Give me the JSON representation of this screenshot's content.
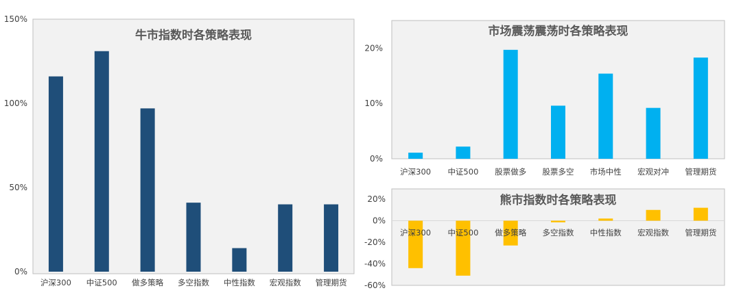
{
  "chart_data": [
    {
      "type": "bar",
      "title": "牛市指数时各策略表现",
      "categories": [
        "沪深300",
        "中证500",
        "做多策略",
        "多空指数",
        "中性指数",
        "宏观指数",
        "管理期货"
      ],
      "values": [
        116,
        131,
        97,
        41,
        14,
        40,
        40
      ],
      "ylim": [
        0,
        150
      ],
      "yticks": [
        "0%",
        "50%",
        "100%",
        "150%"
      ],
      "color": "#1f4e79",
      "grid": false
    },
    {
      "type": "bar",
      "title": "市场震荡震荡时各策略表现",
      "categories": [
        "沪深300",
        "中证500",
        "股票做多",
        "股票多空",
        "市场中性",
        "宏观对冲",
        "管理期货"
      ],
      "values": [
        1.1,
        2.2,
        19.7,
        9.6,
        15.4,
        9.2,
        18.3
      ],
      "ylim": [
        0,
        25
      ],
      "yticks": [
        "0%",
        "10%",
        "20%"
      ],
      "color": "#00b0f0",
      "grid": false
    },
    {
      "type": "bar",
      "title": "熊市指数时各策略表现",
      "categories": [
        "沪深300",
        "中证500",
        "做多策略",
        "多空指数",
        "中性指数",
        "宏观指数",
        "管理期货"
      ],
      "values": [
        -44,
        -51,
        -23,
        -1.5,
        2,
        10,
        12
      ],
      "ylim": [
        -60,
        20
      ],
      "yticks": [
        "-60%",
        "-40%",
        "-20%",
        "0%",
        "20%"
      ],
      "color": "#ffc000",
      "grid": false
    }
  ]
}
